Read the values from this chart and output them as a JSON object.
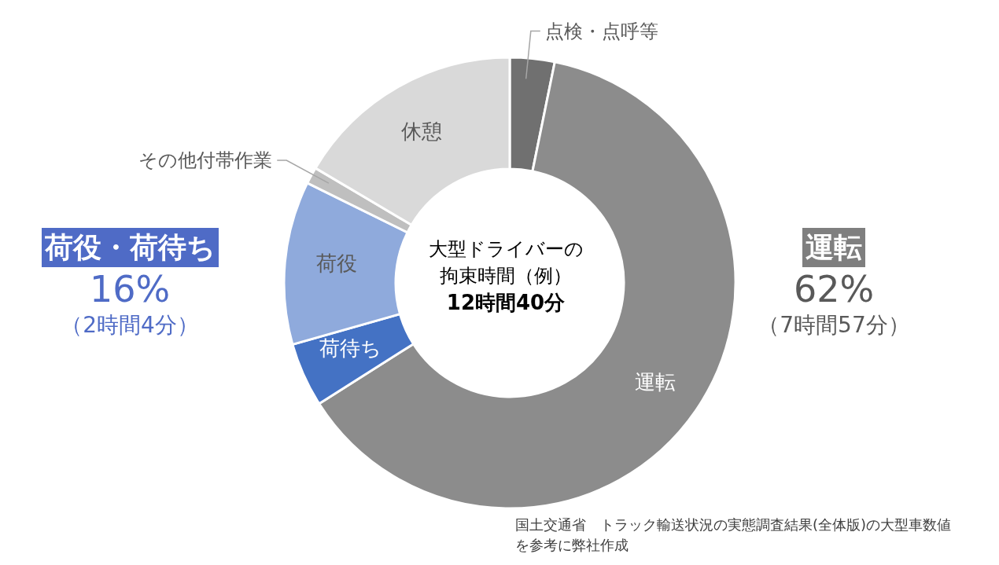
{
  "chart_data": {
    "type": "donut",
    "title": "大型ドライバーの拘束時間（例）",
    "subtitle": "12時間40分",
    "categories": [
      "点検・点呼等",
      "運転",
      "荷待ち",
      "荷役",
      "その他付帯作業",
      "休憩"
    ],
    "values": [
      3.2,
      62.8,
      4.6,
      11.7,
      1.2,
      16.5
    ],
    "colors": [
      "#707070",
      "#8c8c8c",
      "#4472c4",
      "#8faadc",
      "#bfbfbf",
      "#d9d9d9"
    ],
    "annotations": [
      "荷役・荷待ち",
      "16%",
      "（2時間4分）",
      "運転",
      "62%",
      "（7時間57分）",
      "国土交通省　トラック輸送状況の実態調査結果(全体版)の大型車数値を参考に弊社作成"
    ]
  }
}
